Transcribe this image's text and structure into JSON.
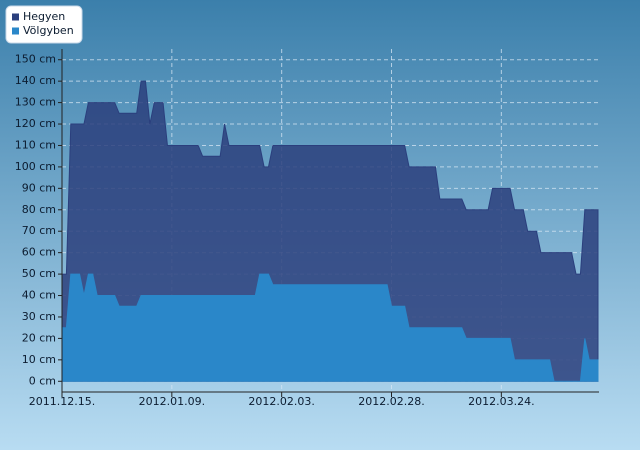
{
  "chart_data": {
    "type": "area",
    "categories": [
      "2011.12.15.",
      null,
      null,
      null,
      null,
      null,
      null,
      null,
      null,
      null,
      null,
      null,
      null,
      null,
      null,
      null,
      null,
      null,
      null,
      null,
      null,
      null,
      null,
      null,
      null,
      "2012.01.09.",
      null,
      null,
      null,
      null,
      null,
      null,
      null,
      null,
      null,
      null,
      null,
      null,
      null,
      null,
      null,
      null,
      null,
      null,
      null,
      null,
      null,
      null,
      null,
      null,
      "2012.02.03.",
      null,
      null,
      null,
      null,
      null,
      null,
      null,
      null,
      null,
      null,
      null,
      null,
      null,
      null,
      null,
      null,
      null,
      null,
      null,
      null,
      null,
      null,
      null,
      null,
      "2012.02.28.",
      null,
      null,
      null,
      null,
      null,
      null,
      null,
      null,
      null,
      null,
      null,
      null,
      null,
      null,
      null,
      null,
      null,
      null,
      null,
      null,
      null,
      null,
      null,
      null,
      "2012.03.24.",
      null,
      null,
      null,
      null,
      null,
      null,
      null,
      null,
      null,
      null,
      null,
      null,
      null,
      null,
      null,
      null,
      null,
      null,
      null,
      null,
      null,
      null
    ],
    "series": [
      {
        "name": "Hegyen",
        "color": "#2b3f7d",
        "values": [
          50,
          50,
          120,
          120,
          120,
          120,
          130,
          130,
          130,
          130,
          130,
          130,
          130,
          125,
          125,
          125,
          125,
          125,
          140,
          140,
          120,
          130,
          130,
          130,
          110,
          110,
          110,
          110,
          110,
          110,
          110,
          110,
          105,
          105,
          105,
          105,
          105,
          120,
          110,
          110,
          110,
          110,
          110,
          110,
          110,
          110,
          100,
          100,
          110,
          110,
          110,
          110,
          110,
          110,
          110,
          110,
          110,
          110,
          110,
          110,
          110,
          110,
          110,
          110,
          110,
          110,
          110,
          110,
          110,
          110,
          110,
          110,
          110,
          110,
          110,
          110,
          110,
          110,
          110,
          100,
          100,
          100,
          100,
          100,
          100,
          100,
          85,
          85,
          85,
          85,
          85,
          85,
          80,
          80,
          80,
          80,
          80,
          80,
          90,
          90,
          90,
          90,
          90,
          80,
          80,
          80,
          70,
          70,
          70,
          60,
          60,
          60,
          60,
          60,
          60,
          60,
          60,
          50,
          50,
          80,
          80,
          80,
          80
        ]
      },
      {
        "name": "Völgyben",
        "color": "#2a87c9",
        "values": [
          25,
          25,
          50,
          50,
          50,
          40,
          50,
          50,
          40,
          40,
          40,
          40,
          40,
          35,
          35,
          35,
          35,
          35,
          40,
          40,
          40,
          40,
          40,
          40,
          40,
          40,
          40,
          40,
          40,
          40,
          40,
          40,
          40,
          40,
          40,
          40,
          40,
          40,
          40,
          40,
          40,
          40,
          40,
          40,
          40,
          50,
          50,
          50,
          45,
          45,
          45,
          45,
          45,
          45,
          45,
          45,
          45,
          45,
          45,
          45,
          45,
          45,
          45,
          45,
          45,
          45,
          45,
          45,
          45,
          45,
          45,
          45,
          45,
          45,
          45,
          35,
          35,
          35,
          35,
          25,
          25,
          25,
          25,
          25,
          25,
          25,
          25,
          25,
          25,
          25,
          25,
          25,
          20,
          20,
          20,
          20,
          20,
          20,
          20,
          20,
          20,
          20,
          20,
          10,
          10,
          10,
          10,
          10,
          10,
          10,
          10,
          10,
          0,
          0,
          0,
          0,
          0,
          0,
          0,
          20,
          10,
          10,
          10
        ]
      }
    ],
    "ylim": [
      -5,
      155
    ],
    "yticks": [
      {
        "value": 0,
        "label": "0 cm"
      },
      {
        "value": 10,
        "label": "10 cm"
      },
      {
        "value": 20,
        "label": "20 cm"
      },
      {
        "value": 30,
        "label": "30 cm"
      },
      {
        "value": 40,
        "label": "40 cm"
      },
      {
        "value": 50,
        "label": "50 cm"
      },
      {
        "value": 60,
        "label": "60 cm"
      },
      {
        "value": 70,
        "label": "70 cm"
      },
      {
        "value": 80,
        "label": "80 cm"
      },
      {
        "value": 90,
        "label": "90 cm"
      },
      {
        "value": 100,
        "label": "100 cm"
      },
      {
        "value": 110,
        "label": "110 cm"
      },
      {
        "value": 120,
        "label": "120 cm"
      },
      {
        "value": 130,
        "label": "130 cm"
      },
      {
        "value": 140,
        "label": "140 cm"
      },
      {
        "value": 150,
        "label": "150 cm"
      }
    ],
    "grid": true,
    "legend": "top-left"
  }
}
